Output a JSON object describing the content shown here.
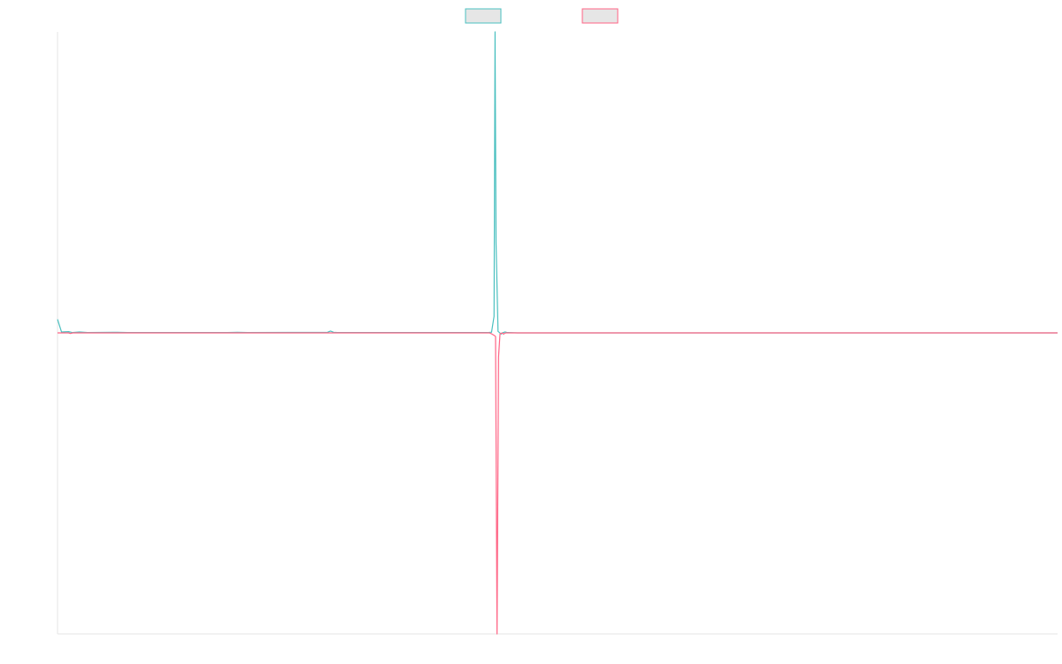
{
  "chart_data": {
    "type": "line",
    "title": "",
    "xlabel": "",
    "ylabel": "",
    "grid": false,
    "legend_position": "top-center",
    "ylim": [
      -1,
      1
    ],
    "xlim": [
      0,
      1
    ],
    "series": [
      {
        "color": "#4bc0c0",
        "fill": "#e6e6e6",
        "points": [
          [
            0.0,
            0.045
          ],
          [
            0.004,
            0.003
          ],
          [
            0.011,
            0.004
          ],
          [
            0.015,
            0.001
          ],
          [
            0.022,
            0.003
          ],
          [
            0.03,
            0.001
          ],
          [
            0.06,
            0.002
          ],
          [
            0.07,
            0.001
          ],
          [
            0.17,
            0.001
          ],
          [
            0.18,
            0.002
          ],
          [
            0.19,
            0.001
          ],
          [
            0.27,
            0.002
          ],
          [
            0.273,
            0.006
          ],
          [
            0.276,
            0.002
          ],
          [
            0.28,
            0.001
          ],
          [
            0.43,
            0.001
          ],
          [
            0.433,
            0.002
          ],
          [
            0.434,
            0.002
          ],
          [
            0.4365,
            0.055
          ],
          [
            0.4375,
            1.0
          ],
          [
            0.4385,
            0.3
          ],
          [
            0.4405,
            0.005
          ],
          [
            0.442,
            0.001
          ],
          [
            0.4435,
            -0.004
          ],
          [
            0.4455,
            0.001
          ],
          [
            0.4475,
            0.003
          ],
          [
            0.45,
            0.001
          ],
          [
            0.46,
            0.0
          ],
          [
            0.6,
            0.0
          ],
          [
            0.8,
            0.0
          ],
          [
            1.0,
            0.0
          ]
        ]
      },
      {
        "color": "#ff6384",
        "fill": "#e6e6e6",
        "points": [
          [
            0.0,
            0.0
          ],
          [
            0.011,
            0.0
          ],
          [
            0.013,
            -0.002
          ],
          [
            0.015,
            0.0
          ],
          [
            0.3,
            0.0
          ],
          [
            0.432,
            0.0
          ],
          [
            0.434,
            -0.003
          ],
          [
            0.4365,
            -0.008
          ],
          [
            0.438,
            -0.012
          ],
          [
            0.4395,
            -1.0
          ],
          [
            0.441,
            -0.08
          ],
          [
            0.4425,
            -0.003
          ],
          [
            0.4445,
            0.0
          ],
          [
            0.446,
            -0.004
          ],
          [
            0.448,
            0.0
          ],
          [
            0.6,
            0.0
          ],
          [
            0.8,
            0.0
          ],
          [
            1.0,
            0.0
          ]
        ]
      }
    ]
  }
}
